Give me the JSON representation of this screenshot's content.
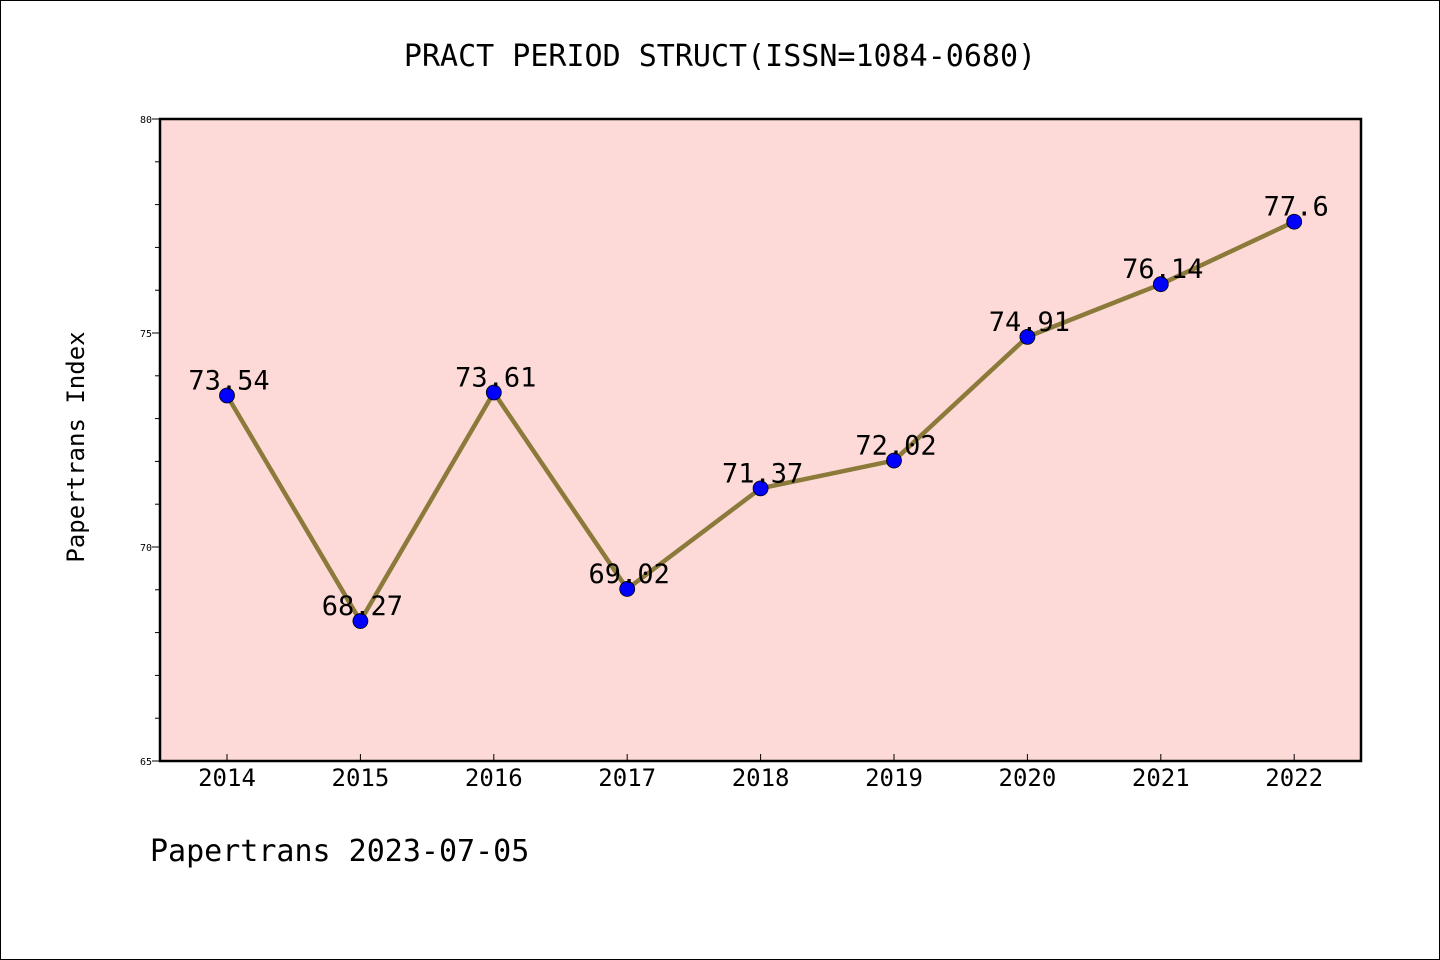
{
  "chart_data": {
    "type": "line",
    "title": "PRACT PERIOD STRUCT(ISSN=1084-0680)",
    "xlabel": "",
    "ylabel": "Papertrans Index",
    "categories": [
      "2014",
      "2015",
      "2016",
      "2017",
      "2018",
      "2019",
      "2020",
      "2021",
      "2022"
    ],
    "series": [
      {
        "values": [
          73.54,
          68.27,
          73.61,
          69.02,
          71.37,
          72.02,
          74.91,
          76.14,
          77.6
        ],
        "labels": [
          "73.54",
          "68.27",
          "73.61",
          "69.02",
          "71.37",
          "72.02",
          "74.91",
          "76.14",
          "77.6"
        ]
      }
    ],
    "ylim": [
      65,
      80
    ],
    "yticks": [
      "65",
      "70",
      "75",
      "80"
    ],
    "grid": false,
    "colors": {
      "background": "#fddad7",
      "line": "#8b7a3a",
      "marker": "#0000ff"
    }
  },
  "footer": "Papertrans 2023-07-05"
}
